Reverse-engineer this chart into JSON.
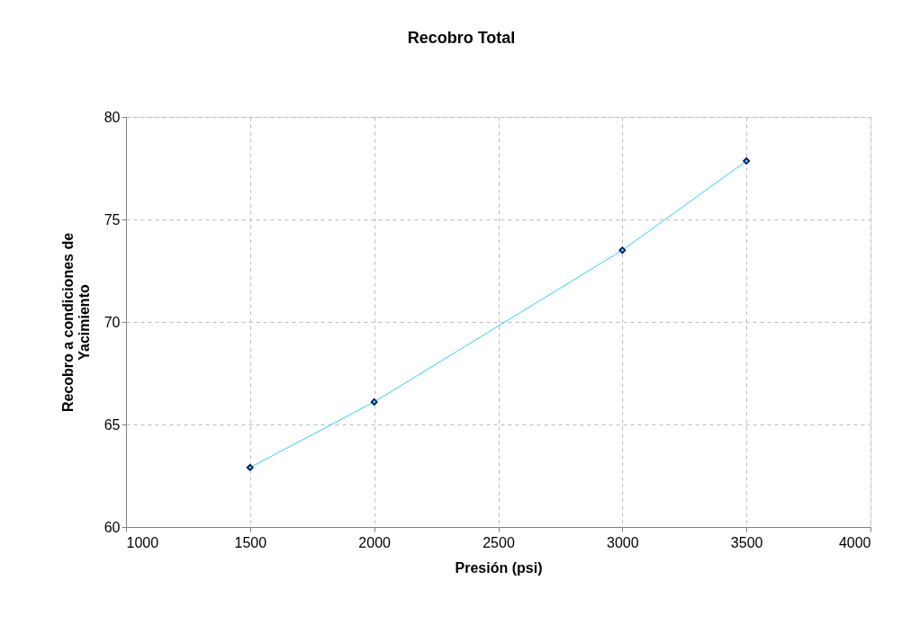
{
  "chart_data": {
    "type": "line",
    "title": "Recobro Total",
    "xlabel": "Presión (psi)",
    "ylabel": "Recobro a condiciones de\nYacimiento",
    "x": [
      1500,
      2000,
      3000,
      3500
    ],
    "series": [
      {
        "color": "#33ccff",
        "values": [
          62.9,
          66.1,
          73.5,
          77.85
        ]
      }
    ],
    "xlim": [
      1000,
      4000
    ],
    "xticks": [
      1000,
      1500,
      2000,
      2500,
      3000,
      3500,
      4000
    ],
    "ylim": [
      60,
      80
    ],
    "yticks": [
      60,
      65,
      70,
      75,
      80
    ],
    "grid": true,
    "marker": "diamond",
    "line_style": "solid"
  }
}
